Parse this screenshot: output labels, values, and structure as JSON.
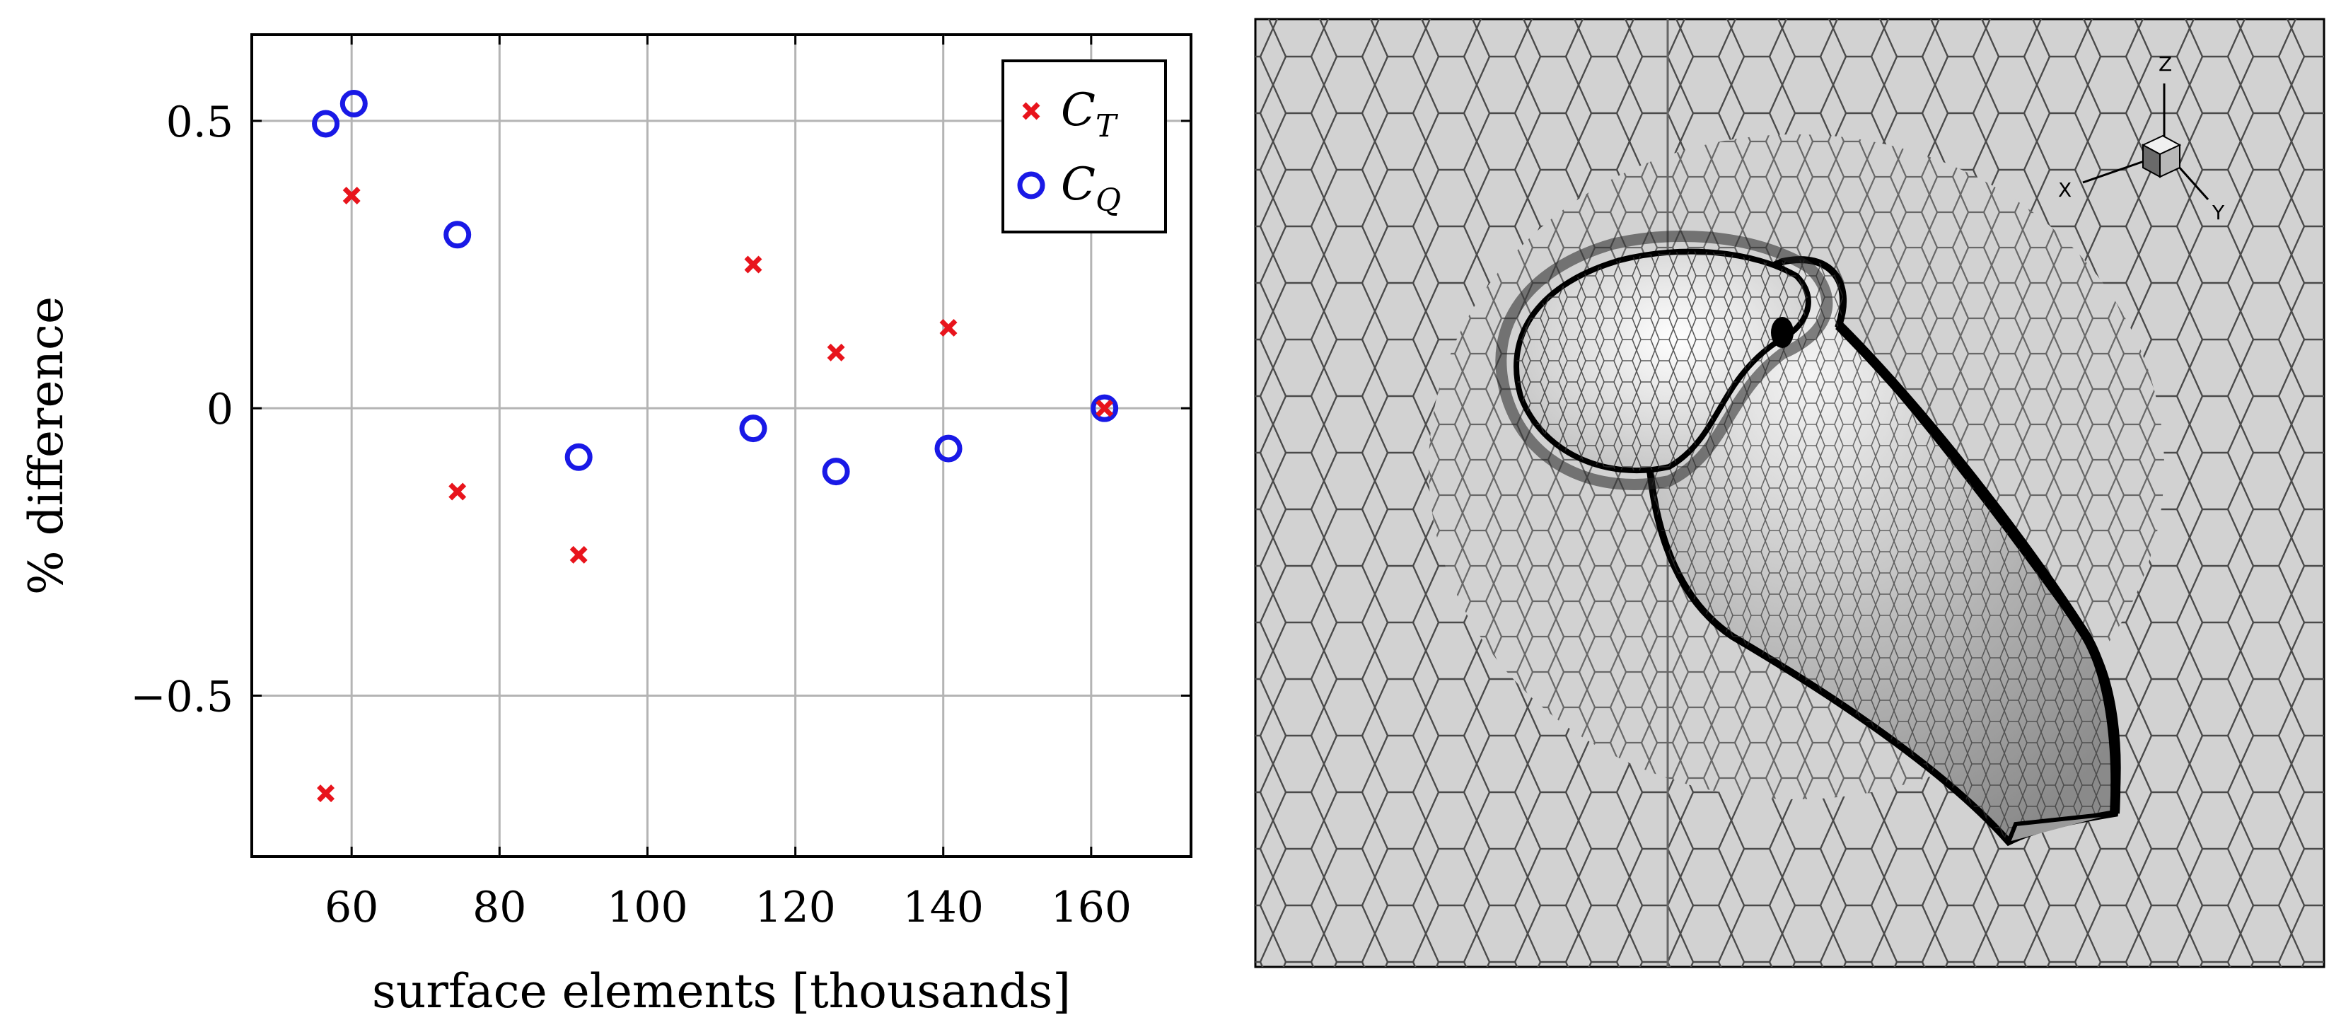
{
  "chart_data": {
    "type": "scatter",
    "xlabel": "surface elements [thousands]",
    "ylabel": "% difference",
    "xlim": [
      46.5,
      173.5
    ],
    "ylim": [
      -0.78,
      0.65
    ],
    "xticks": [
      60,
      80,
      100,
      120,
      140,
      160
    ],
    "xtick_labels": [
      "60",
      "80",
      "100",
      "120",
      "140",
      "160"
    ],
    "yticks": [
      -0.5,
      0,
      0.5
    ],
    "ytick_labels": [
      "−0.5",
      "0",
      "0.5"
    ],
    "grid": true,
    "legend": {
      "placement": "top-right"
    },
    "series": [
      {
        "name": "C_T",
        "label_main": "C",
        "label_sub": "T",
        "marker": "x",
        "color": "#e8141c",
        "points": [
          {
            "x": 56.5,
            "y": -0.67
          },
          {
            "x": 60.0,
            "y": 0.37
          },
          {
            "x": 74.3,
            "y": -0.145
          },
          {
            "x": 90.7,
            "y": -0.255
          },
          {
            "x": 114.3,
            "y": 0.25
          },
          {
            "x": 125.5,
            "y": 0.097
          },
          {
            "x": 140.7,
            "y": 0.14
          },
          {
            "x": 161.8,
            "y": 0.0
          }
        ]
      },
      {
        "name": "C_Q",
        "label_main": "C",
        "label_sub": "Q",
        "marker": "o",
        "color": "#1919e6",
        "points": [
          {
            "x": 56.5,
            "y": 0.495
          },
          {
            "x": 60.3,
            "y": 0.53
          },
          {
            "x": 74.3,
            "y": 0.302
          },
          {
            "x": 90.7,
            "y": -0.085
          },
          {
            "x": 114.3,
            "y": -0.035
          },
          {
            "x": 125.5,
            "y": -0.11
          },
          {
            "x": 140.7,
            "y": -0.07
          },
          {
            "x": 161.8,
            "y": 0.0
          }
        ]
      }
    ]
  },
  "mesh_image": {
    "description_icon": "propeller-blade-mesh",
    "triad_labels": {
      "x": "X",
      "y": "Y",
      "z": "Z"
    }
  }
}
